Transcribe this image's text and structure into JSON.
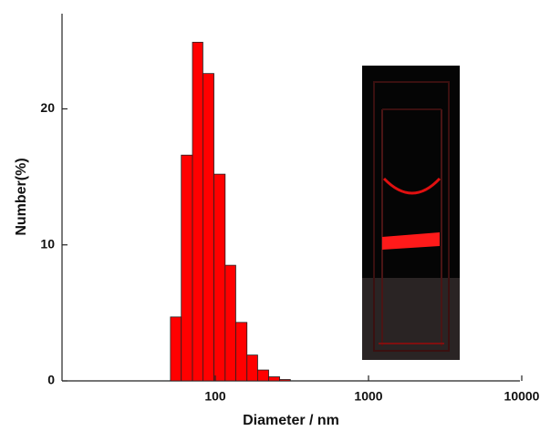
{
  "chart_data": {
    "type": "histogram",
    "x_label": "Diameter / nm",
    "y_label": "Number(%)",
    "bins": [
      51,
      60,
      71,
      83,
      98,
      116,
      136,
      161,
      189,
      223,
      263,
      309
    ],
    "values": [
      4.7,
      16.6,
      24.9,
      22.6,
      15.2,
      8.5,
      4.3,
      1.9,
      0.8,
      0.3,
      0.1
    ],
    "color": "#ff0000",
    "xscale": "log",
    "xlim": [
      10,
      10000
    ],
    "xticks": [
      100,
      1000,
      10000
    ],
    "ylim": [
      0,
      27
    ],
    "yticks": [
      0,
      10,
      20
    ]
  }
}
